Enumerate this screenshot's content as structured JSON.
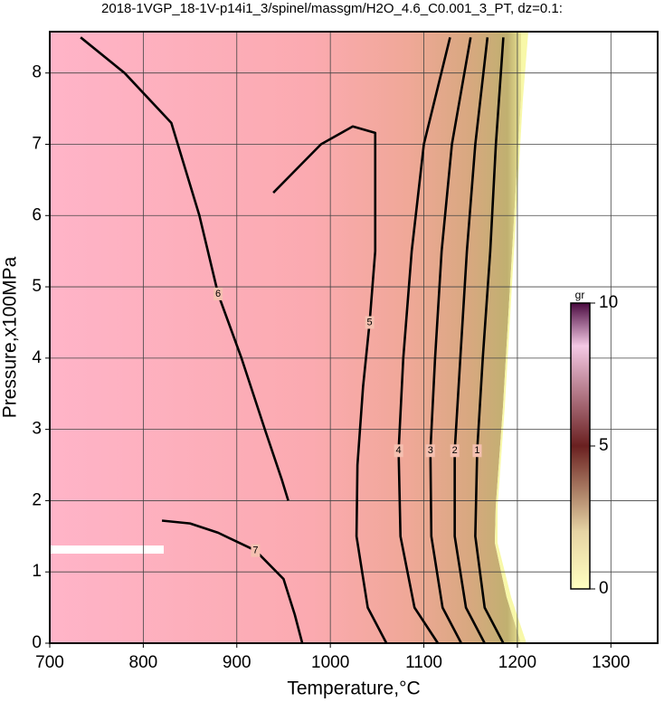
{
  "chart_data": {
    "type": "contour",
    "title": "2018-1VGP_18-1V-p14i1_3/spinel/massgm/H2O_4.6_C0.001_3_PT, dz=0.1:",
    "x_label": "Temperature,°C",
    "y_label": "Pressure,x100MPa",
    "xlim": [
      700,
      1350
    ],
    "ylim": [
      0,
      8.58
    ],
    "xticks": [
      700,
      800,
      900,
      1000,
      1100,
      1200,
      1300
    ],
    "yticks": [
      0,
      1,
      2,
      3,
      4,
      5,
      6,
      7,
      8
    ],
    "grid": true,
    "colorbar": {
      "label": "gr",
      "lim": [
        0,
        10
      ],
      "ticks": [
        0,
        5,
        10
      ]
    },
    "series": [
      {
        "name": "6",
        "x": [
          733,
          780,
          830,
          860,
          880,
          905,
          930,
          948,
          955
        ],
        "y": [
          8.5,
          8.0,
          7.3,
          6.0,
          4.9,
          4.0,
          3.0,
          2.3,
          2.0
        ]
      },
      {
        "name": "5",
        "x": [
          939,
          960,
          990,
          1024,
          1048,
          1048,
          1042,
          1035,
          1029,
          1028,
          1040,
          1060
        ],
        "y": [
          6.32,
          6.6,
          7.0,
          7.25,
          7.16,
          5.5,
          4.5,
          3.6,
          2.5,
          1.5,
          0.5,
          0
        ]
      },
      {
        "name": "4",
        "x": [
          1128,
          1100,
          1087,
          1078,
          1073,
          1075,
          1090,
          1115
        ],
        "y": [
          8.5,
          7.0,
          5.5,
          4.0,
          2.7,
          1.5,
          0.5,
          0
        ]
      },
      {
        "name": "3",
        "x": [
          1150,
          1130,
          1119,
          1112,
          1107,
          1108,
          1120,
          1140
        ],
        "y": [
          8.5,
          7.0,
          5.5,
          4.0,
          2.7,
          1.5,
          0.5,
          0
        ]
      },
      {
        "name": "2",
        "x": [
          1168,
          1155,
          1146,
          1139,
          1133,
          1133,
          1145,
          1165
        ],
        "y": [
          8.5,
          7.0,
          5.5,
          4.0,
          2.7,
          1.5,
          0.5,
          0
        ]
      },
      {
        "name": "1",
        "x": [
          1185,
          1177,
          1171,
          1163,
          1157,
          1155,
          1165,
          1185
        ],
        "y": [
          8.5,
          7.0,
          5.5,
          4.0,
          2.7,
          1.5,
          0.5,
          0
        ]
      },
      {
        "name": "7",
        "x": [
          820,
          850,
          880,
          920,
          950,
          962,
          970
        ],
        "y": [
          1.72,
          1.68,
          1.55,
          1.3,
          0.9,
          0.4,
          0
        ]
      }
    ]
  }
}
